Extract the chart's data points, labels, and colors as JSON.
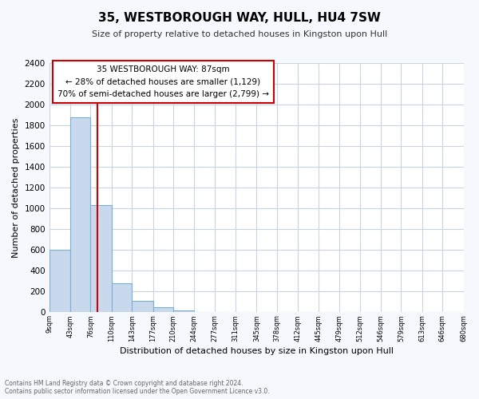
{
  "title": "35, WESTBOROUGH WAY, HULL, HU4 7SW",
  "subtitle": "Size of property relative to detached houses in Kingston upon Hull",
  "xlabel": "Distribution of detached houses by size in Kingston upon Hull",
  "ylabel": "Number of detached properties",
  "bin_edges": [
    9,
    43,
    76,
    110,
    143,
    177,
    210,
    244,
    277,
    311,
    345,
    378,
    412,
    445,
    479,
    512,
    546,
    579,
    613,
    646,
    680
  ],
  "bar_heights": [
    600,
    1880,
    1030,
    280,
    110,
    45,
    20,
    0,
    0,
    0,
    0,
    0,
    0,
    0,
    0,
    0,
    0,
    0,
    0,
    0
  ],
  "bar_color": "#c8d9ee",
  "bar_edge_color": "#7bafd4",
  "property_line_x": 87,
  "property_line_color": "#cc0000",
  "annotation_title": "35 WESTBOROUGH WAY: 87sqm",
  "annotation_line1": "← 28% of detached houses are smaller (1,129)",
  "annotation_line2": "70% of semi-detached houses are larger (2,799) →",
  "annotation_box_facecolor": "#ffffff",
  "annotation_box_edgecolor": "#cc0000",
  "ylim": [
    0,
    2400
  ],
  "yticks": [
    0,
    200,
    400,
    600,
    800,
    1000,
    1200,
    1400,
    1600,
    1800,
    2000,
    2200,
    2400
  ],
  "tick_labels": [
    "9sqm",
    "43sqm",
    "76sqm",
    "110sqm",
    "143sqm",
    "177sqm",
    "210sqm",
    "244sqm",
    "277sqm",
    "311sqm",
    "345sqm",
    "378sqm",
    "412sqm",
    "445sqm",
    "479sqm",
    "512sqm",
    "546sqm",
    "579sqm",
    "613sqm",
    "646sqm",
    "680sqm"
  ],
  "grid_color": "#c8d4e0",
  "plot_bg_color": "#ffffff",
  "fig_bg_color": "#f5f8fc",
  "footer_line1": "Contains HM Land Registry data © Crown copyright and database right 2024.",
  "footer_line2": "Contains public sector information licensed under the Open Government Licence v3.0."
}
